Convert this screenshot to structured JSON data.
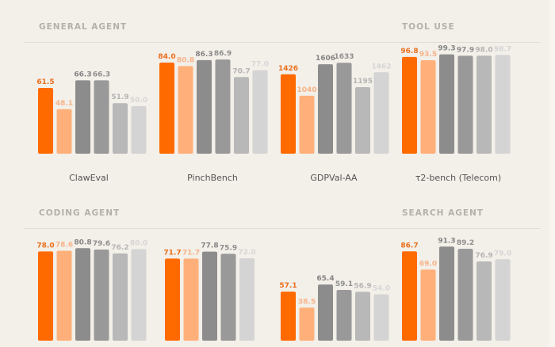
{
  "sections": {
    "general_agent": "GENERAL AGENT",
    "tool_use": "TOOL USE",
    "coding_agent": "CODING AGENT",
    "search_agent": "SEARCH AGENT"
  },
  "palette": {
    "primary": "#ff6a00",
    "primary_light": "#ffb07a",
    "dark_grey": "#8c8c8c",
    "mid_grey": "#999999",
    "light_grey": "#b8b8b8",
    "lightest_grey": "#d4d4d4",
    "background": "#f3efe9"
  },
  "chart_data": [
    {
      "type": "bar",
      "section": "GENERAL AGENT",
      "title": "ClawEval",
      "values": [
        "61.5",
        "48.1",
        "66.3",
        "66.3",
        "51.9",
        "50.0"
      ],
      "colors": [
        "primary",
        "primary_light",
        "dark_grey",
        "mid_grey",
        "light_grey",
        "lightest_grey"
      ],
      "ylim": [
        0,
        100
      ]
    },
    {
      "type": "bar",
      "section": "GENERAL AGENT",
      "title": "PinchBench",
      "values": [
        "84.0",
        "80.8",
        "86.3",
        "86.9",
        "70.7",
        "77.0"
      ],
      "colors": [
        "primary",
        "primary_light",
        "dark_grey",
        "mid_grey",
        "light_grey",
        "lightest_grey"
      ],
      "ylim": [
        0,
        100
      ]
    },
    {
      "type": "bar",
      "section": "GENERAL AGENT",
      "title": "GDPVal-AA",
      "values": [
        "1426",
        "1040",
        "1606",
        "1633",
        "1195",
        "1462"
      ],
      "colors": [
        "primary",
        "primary_light",
        "dark_grey",
        "mid_grey",
        "light_grey",
        "lightest_grey"
      ],
      "ylim": [
        0,
        2000
      ]
    },
    {
      "type": "bar",
      "section": "TOOL USE",
      "title": "τ2-bench (Telecom)",
      "values": [
        "96.8",
        "93.5",
        "99.3",
        "97.9",
        "98.0",
        "98.7"
      ],
      "colors": [
        "primary",
        "primary_light",
        "dark_grey",
        "mid_grey",
        "light_grey",
        "lightest_grey"
      ],
      "ylim": [
        0,
        100
      ]
    },
    {
      "type": "bar",
      "section": "CODING AGENT",
      "title": "",
      "values": [
        "78.0",
        "78.6",
        "80.8",
        "79.6",
        "76.2",
        "80.0"
      ],
      "colors": [
        "primary",
        "primary_light",
        "dark_grey",
        "mid_grey",
        "light_grey",
        "lightest_grey"
      ],
      "ylim": [
        0,
        100
      ]
    },
    {
      "type": "bar",
      "section": "CODING AGENT",
      "title": "",
      "values": [
        "71.7",
        "71.7",
        "77.8",
        "75.9",
        "72.0"
      ],
      "colors": [
        "primary",
        "primary_light",
        "dark_grey",
        "mid_grey",
        "lightest_grey"
      ],
      "ylim": [
        0,
        100
      ]
    },
    {
      "type": "bar",
      "section": "CODING AGENT",
      "title": "",
      "values": [
        "57.1",
        "38.5",
        "65.4",
        "59.1",
        "56.9",
        "54.0"
      ],
      "colors": [
        "primary",
        "primary_light",
        "dark_grey",
        "mid_grey",
        "light_grey",
        "lightest_grey"
      ],
      "ylim": [
        0,
        100
      ]
    },
    {
      "type": "bar",
      "section": "SEARCH AGENT",
      "title": "",
      "values": [
        "86.7",
        "69.0",
        "91.3",
        "89.2",
        "76.9",
        "79.0"
      ],
      "colors": [
        "primary",
        "primary_light",
        "dark_grey",
        "mid_grey",
        "light_grey",
        "lightest_grey"
      ],
      "ylim": [
        0,
        100
      ]
    }
  ]
}
